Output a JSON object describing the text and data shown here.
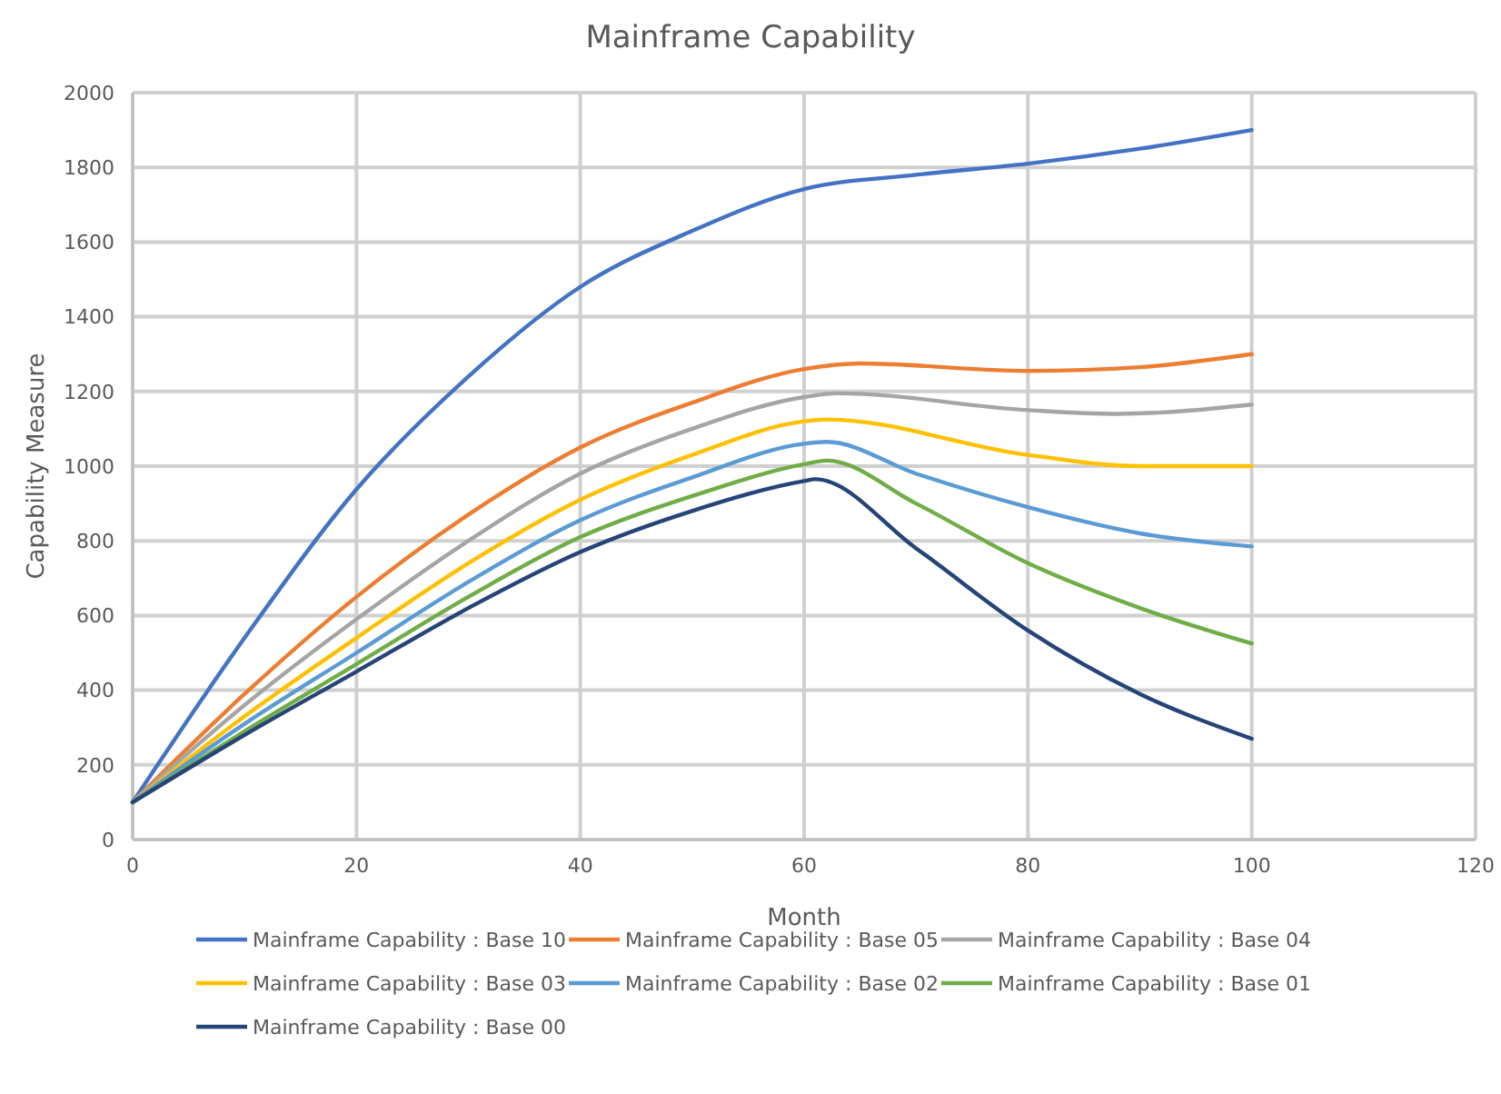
{
  "chart_data": {
    "type": "line",
    "title": "Mainframe Capability",
    "xlabel": "Month",
    "ylabel": "Capability Measure",
    "xlim": [
      0,
      120
    ],
    "xticks": [
      0,
      20,
      40,
      60,
      80,
      100,
      120
    ],
    "ylim": [
      0,
      2000
    ],
    "yticks": [
      0,
      200,
      400,
      600,
      800,
      1000,
      1200,
      1400,
      1600,
      1800,
      2000
    ],
    "grid": true,
    "legend": "bottom",
    "marker": "none",
    "line_style": "solid",
    "series": [
      {
        "name": "Mainframe Capability : Base 10",
        "color": "#4472c4",
        "x": [
          0,
          10,
          20,
          30,
          40,
          50,
          60,
          70,
          80,
          90,
          100
        ],
        "values": [
          100,
          540,
          938,
          1240,
          1480,
          1630,
          1742,
          1780,
          1810,
          1850,
          1900
        ]
      },
      {
        "name": "Mainframe Capability : Base 05",
        "color": "#ed7d31",
        "x": [
          0,
          10,
          20,
          30,
          40,
          50,
          60,
          65,
          80,
          90,
          100
        ],
        "values": [
          100,
          390,
          650,
          870,
          1050,
          1170,
          1260,
          1275,
          1255,
          1265,
          1300
        ]
      },
      {
        "name": "Mainframe Capability : Base 04",
        "color": "#a5a5a5",
        "x": [
          0,
          10,
          20,
          30,
          40,
          50,
          60,
          63,
          80,
          88,
          100
        ],
        "values": [
          100,
          360,
          590,
          800,
          980,
          1100,
          1185,
          1195,
          1150,
          1140,
          1165
        ]
      },
      {
        "name": "Mainframe Capability : Base 03",
        "color": "#ffc000",
        "x": [
          0,
          10,
          20,
          30,
          40,
          50,
          60,
          62,
          80,
          90,
          100
        ],
        "values": [
          100,
          330,
          540,
          740,
          910,
          1030,
          1120,
          1125,
          1030,
          1000,
          1000
        ]
      },
      {
        "name": "Mainframe Capability : Base 02",
        "color": "#5b9bd5",
        "x": [
          0,
          10,
          20,
          30,
          40,
          50,
          60,
          62,
          70,
          80,
          90,
          100
        ],
        "values": [
          100,
          310,
          500,
          690,
          855,
          970,
          1060,
          1065,
          980,
          890,
          820,
          785
        ]
      },
      {
        "name": "Mainframe Capability : Base 01",
        "color": "#70ad47",
        "x": [
          0,
          10,
          20,
          30,
          40,
          50,
          60,
          62,
          70,
          80,
          90,
          100
        ],
        "values": [
          100,
          290,
          470,
          650,
          810,
          920,
          1005,
          1015,
          900,
          740,
          620,
          525
        ]
      },
      {
        "name": "Mainframe Capability : Base 00",
        "color": "#264478",
        "x": [
          0,
          10,
          20,
          30,
          40,
          50,
          60,
          61,
          70,
          80,
          90,
          100
        ],
        "values": [
          100,
          280,
          450,
          620,
          770,
          880,
          960,
          965,
          780,
          560,
          390,
          270
        ]
      }
    ]
  }
}
